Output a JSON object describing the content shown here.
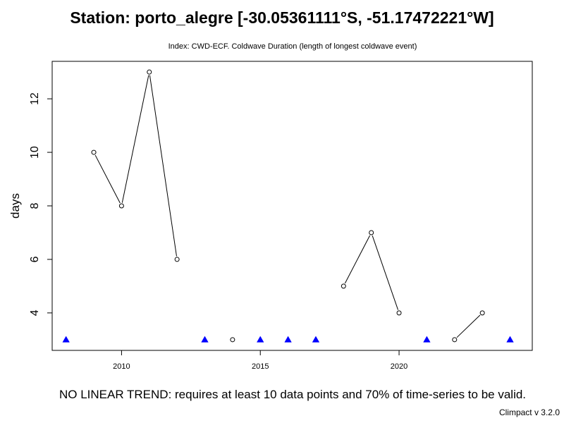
{
  "header": {
    "title": "Station: porto_alegre [-30.05361111°S, -51.17472221°W]",
    "subtitle": "Index: CWD-ECF. Coldwave Duration (length of longest coldwave event)"
  },
  "footer": {
    "trend_note": "NO LINEAR TREND: requires at least 10 data points and 70% of time-series to be valid.",
    "version": "Climpact v 3.2.0"
  },
  "chart_data": {
    "type": "line",
    "title": "Station: porto_alegre [-30.05361111°S, -51.17472221°W]",
    "subtitle": "Index: CWD-ECF. Coldwave Duration (length of longest coldwave event)",
    "xlabel": "",
    "ylabel": "days",
    "xlim": [
      2007.5,
      2024.8
    ],
    "ylim": [
      2.6,
      13.4
    ],
    "x_ticks": [
      2010,
      2015,
      2020
    ],
    "y_ticks": [
      4,
      6,
      8,
      10,
      12
    ],
    "grid": false,
    "series": [
      {
        "marker": "open-circle",
        "color": "#000000",
        "points": [
          {
            "x": 2009,
            "y": 10
          },
          {
            "x": 2010,
            "y": 8
          },
          {
            "x": 2011,
            "y": 13
          },
          {
            "x": 2012,
            "y": 6
          },
          {
            "x": 2014,
            "y": 3
          },
          {
            "x": 2018,
            "y": 5
          },
          {
            "x": 2019,
            "y": 7
          },
          {
            "x": 2020,
            "y": 4
          },
          {
            "x": 2022,
            "y": 3
          },
          {
            "x": 2023,
            "y": 4
          }
        ]
      },
      {
        "marker": "filled-triangle",
        "color": "#0000ff",
        "points": [
          {
            "x": 2008,
            "y": 3
          },
          {
            "x": 2013,
            "y": 3
          },
          {
            "x": 2015,
            "y": 3
          },
          {
            "x": 2016,
            "y": 3
          },
          {
            "x": 2017,
            "y": 3
          },
          {
            "x": 2021,
            "y": 3
          },
          {
            "x": 2024,
            "y": 3
          }
        ]
      }
    ]
  }
}
